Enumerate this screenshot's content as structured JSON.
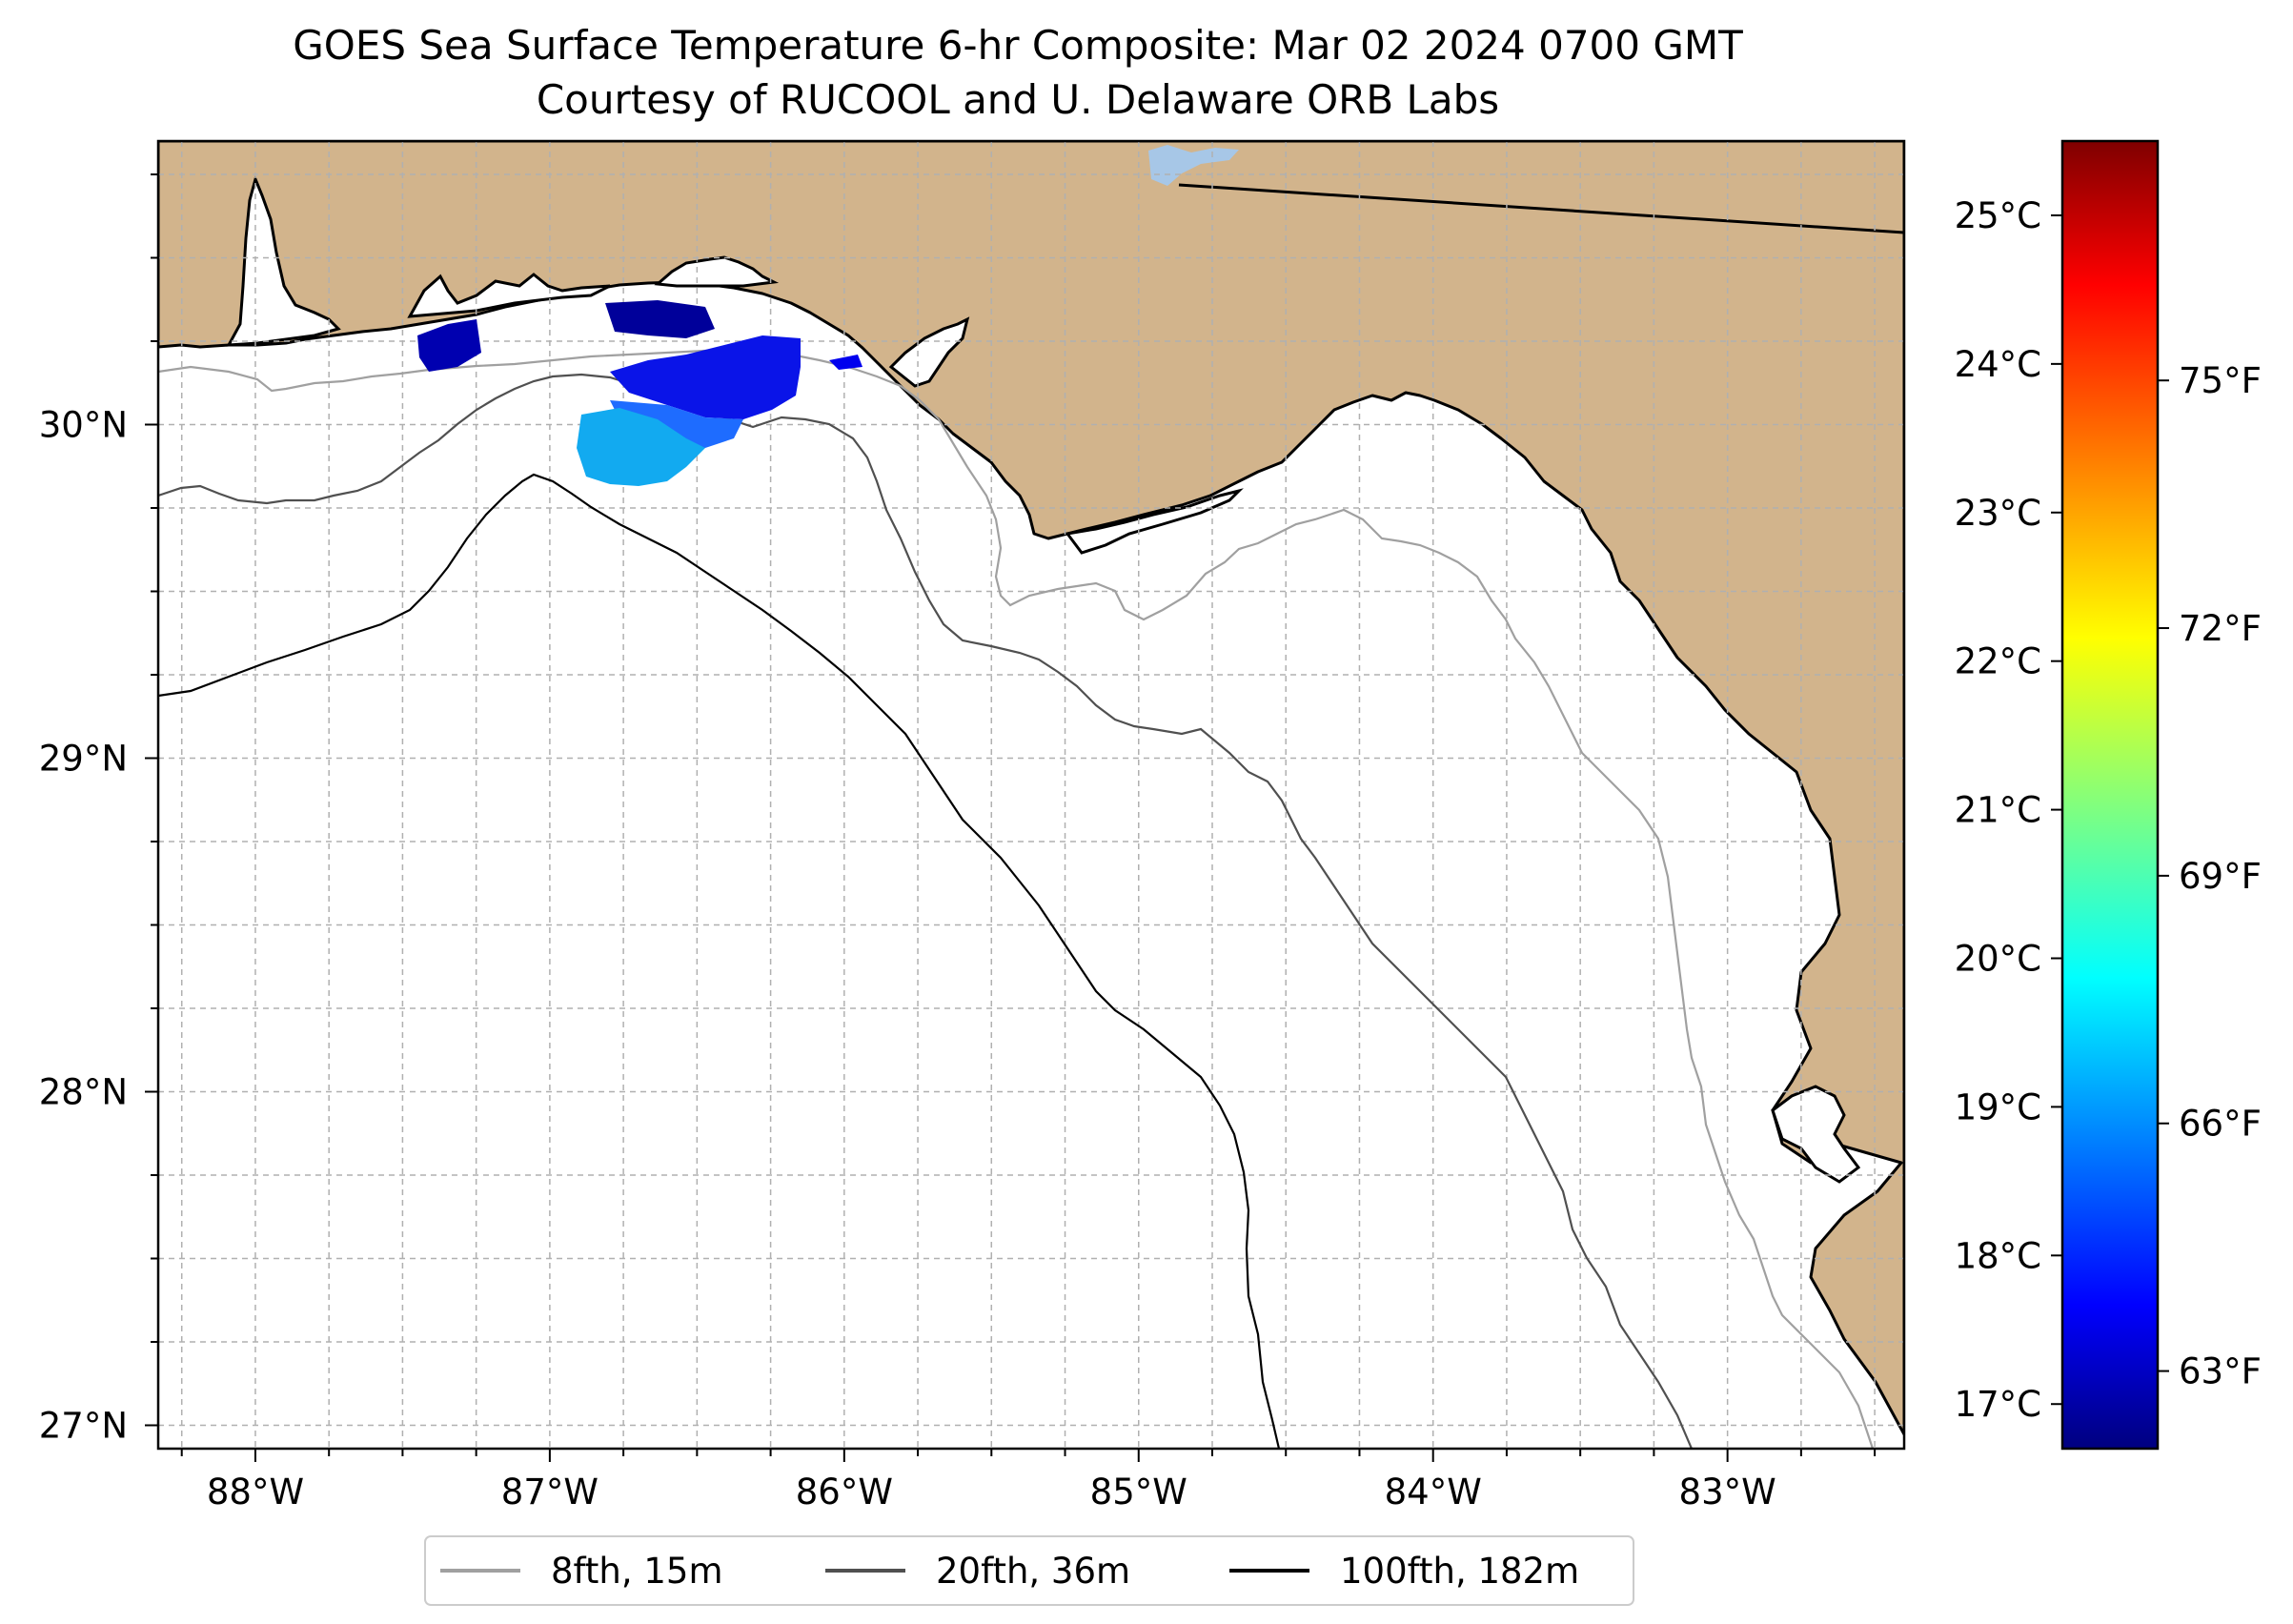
{
  "title": {
    "line1": "GOES Sea Surface Temperature 6-hr Composite: Mar 02 2024 0700 GMT",
    "line2": "Courtesy of RUCOOL and U. Delaware ORB Labs"
  },
  "map": {
    "lon_range": [
      -88.33,
      -82.4
    ],
    "lat_range": [
      26.93,
      30.85
    ],
    "land_color": "#d2b48c",
    "ocean_color": "#ffffff",
    "gridlines": true,
    "x_ticks": [
      "88°W",
      "87°W",
      "86°W",
      "85°W",
      "84°W",
      "83°W"
    ],
    "y_ticks": [
      "27°N",
      "28°N",
      "29°N",
      "30°N"
    ]
  },
  "colorbar": {
    "colormap": "jet",
    "celsius_ticks": [
      "17°C",
      "18°C",
      "19°C",
      "20°C",
      "21°C",
      "22°C",
      "23°C",
      "24°C",
      "25°C"
    ],
    "fahrenheit_ticks": [
      "63°F",
      "66°F",
      "69°F",
      "72°F",
      "75°F"
    ],
    "range_c": [
      16.7,
      25.5
    ]
  },
  "legend": {
    "items": [
      {
        "label": "8fth, 15m",
        "color": "#a0a0a0"
      },
      {
        "label": "20fth, 36m",
        "color": "#505050"
      },
      {
        "label": "100fth, 182m",
        "color": "#000000"
      }
    ]
  }
}
